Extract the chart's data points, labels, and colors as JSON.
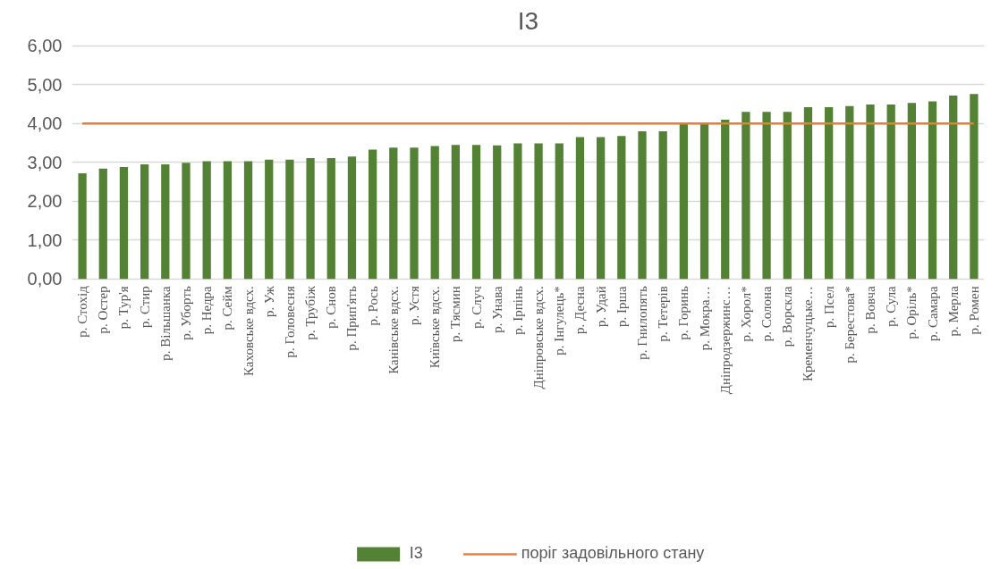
{
  "chart_data": {
    "type": "bar",
    "title": "І3",
    "categories": [
      "р. Стохід",
      "р. Остер",
      "р. Тур'я",
      "р. Стир",
      "р. Вільшанка",
      "р. Уборть",
      "р. Недра",
      "р. Сейм",
      "Каховське вдсх.",
      "р. Уж",
      "р. Головесня",
      "р. Трубіж",
      "р. Снов",
      "р. Прип'ять",
      "р. Рось",
      "Канівське вдсх.",
      "р. Устя",
      "Київське вдсх.",
      "р. Тясмин",
      "р. Случ",
      "р. Унава",
      "р. Ірпінь",
      "Дніпровське вдсх.",
      "р. Інгулець*",
      "р. Десна",
      "р. Удай",
      "р. Ірша",
      "р. Гнилопять",
      "р. Тетерів",
      "р. Горинь",
      "р. Мокра…",
      "Дніпродзержинс…",
      "р. Хорол*",
      "р. Солона",
      "р. Ворскла",
      "Кременчуцьке…",
      "р. Псел",
      "р. Берестова*",
      "р. Вовча",
      "р. Сула",
      "р. Оріль*",
      "р. Самара",
      "р. Мерла",
      "р. Ромен"
    ],
    "series": [
      {
        "name": "І3",
        "color": "#548235",
        "values": [
          2.72,
          2.84,
          2.88,
          2.95,
          2.95,
          2.99,
          3.03,
          3.03,
          3.03,
          3.07,
          3.07,
          3.11,
          3.11,
          3.15,
          3.33,
          3.38,
          3.38,
          3.42,
          3.45,
          3.45,
          3.44,
          3.49,
          3.49,
          3.49,
          3.65,
          3.65,
          3.68,
          3.8,
          3.8,
          3.99,
          3.99,
          4.1,
          4.3,
          4.3,
          4.3,
          4.42,
          4.42,
          4.45,
          4.49,
          4.49,
          4.53,
          4.57,
          4.72,
          4.76
        ]
      }
    ],
    "ref_lines": [
      {
        "axis": "y",
        "value": 4,
        "label": "поріг задовільного стану",
        "color": "#ed7d31",
        "line_style": "solid"
      }
    ],
    "ylim": [
      0,
      6
    ],
    "yticks": [
      {
        "value": 0,
        "label": "0,00"
      },
      {
        "value": 1,
        "label": "1,00"
      },
      {
        "value": 2,
        "label": "2,00"
      },
      {
        "value": 3,
        "label": "3,00"
      },
      {
        "value": 4,
        "label": "4,00"
      },
      {
        "value": 5,
        "label": "5,00"
      },
      {
        "value": 6,
        "label": "6,00"
      }
    ],
    "grid": "y",
    "legend": "bottom"
  }
}
